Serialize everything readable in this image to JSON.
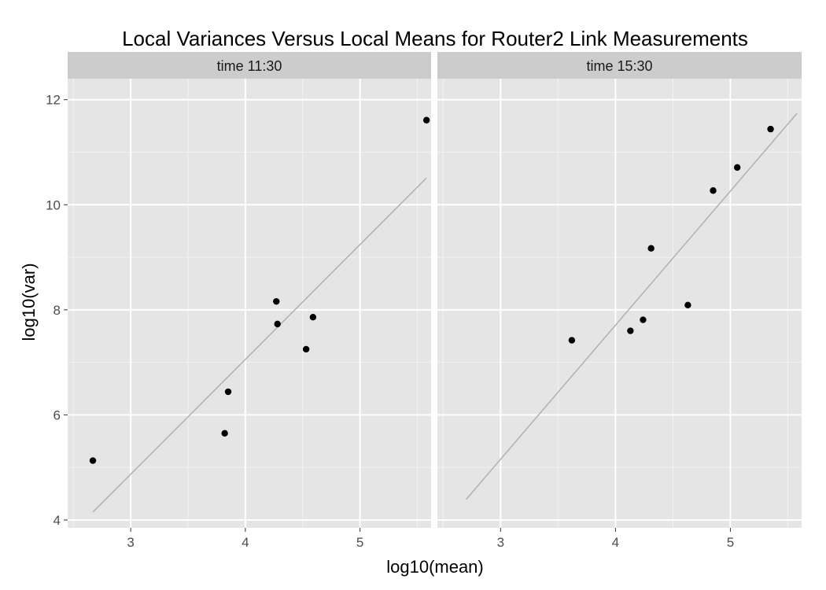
{
  "chart_data": {
    "type": "scatter",
    "title": "Local Variances Versus Local Means for Router2 Link Measurements",
    "xlabel": "log10(mean)",
    "ylabel": "log10(var)",
    "xlim": [
      2.45,
      5.62
    ],
    "ylim": [
      3.85,
      12.4
    ],
    "x_ticks": [
      3,
      4,
      5
    ],
    "y_ticks": [
      4,
      6,
      8,
      10,
      12
    ],
    "x_tick_labels": [
      "3",
      "4",
      "5"
    ],
    "y_tick_labels": [
      "4",
      "6",
      "8",
      "10",
      "12"
    ],
    "grid": true,
    "colors": {
      "panel_bg": "#e5e5e5",
      "strip_bg": "#cccccc",
      "grid_major": "#ffffff",
      "grid_minor": "#f2f2f2",
      "point": "#000000",
      "fit_line": "#b3b3b3"
    },
    "panels": [
      {
        "strip": "time 11:30",
        "points": [
          {
            "x": 2.67,
            "y": 5.13
          },
          {
            "x": 3.82,
            "y": 5.65
          },
          {
            "x": 3.85,
            "y": 6.44
          },
          {
            "x": 4.27,
            "y": 8.16
          },
          {
            "x": 4.28,
            "y": 7.73
          },
          {
            "x": 4.53,
            "y": 7.25
          },
          {
            "x": 4.59,
            "y": 7.86
          },
          {
            "x": 5.58,
            "y": 11.61
          }
        ],
        "fit_line": {
          "x": [
            2.67,
            5.58
          ],
          "y": [
            4.15,
            10.51
          ]
        }
      },
      {
        "strip": "time 15:30",
        "points": [
          {
            "x": 3.62,
            "y": 7.42
          },
          {
            "x": 4.13,
            "y": 7.6
          },
          {
            "x": 4.24,
            "y": 7.81
          },
          {
            "x": 4.31,
            "y": 9.17
          },
          {
            "x": 4.63,
            "y": 8.09
          },
          {
            "x": 4.85,
            "y": 10.27
          },
          {
            "x": 5.06,
            "y": 10.71
          },
          {
            "x": 5.35,
            "y": 11.44
          }
        ],
        "fit_line": {
          "x": [
            2.7,
            5.58
          ],
          "y": [
            4.39,
            11.74
          ]
        }
      }
    ]
  }
}
